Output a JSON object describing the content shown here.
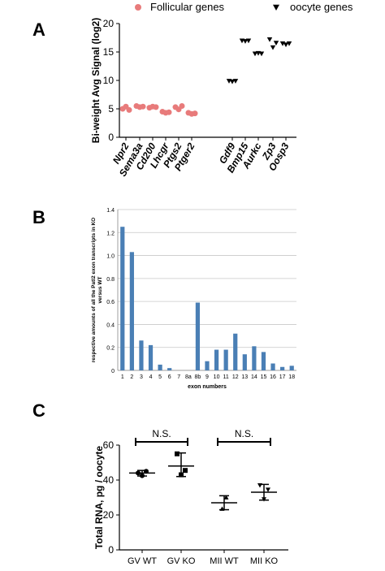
{
  "panel_labels": {
    "a": "A",
    "b": "B",
    "c": "C"
  },
  "colors": {
    "follicular": "#e87b7b",
    "oocyte": "#000000",
    "bars": "#4a7fb5",
    "grid": "#c8c8c8"
  },
  "chart_data": [
    {
      "type": "scatter",
      "legend": [
        "Follicular genes",
        "oocyte genes"
      ],
      "legend_placement": "top",
      "ylabel": "Bi-weight Avg Signal (log2)",
      "xlabel": "",
      "ylim": [
        0,
        20
      ],
      "yticks": [
        0,
        5,
        10,
        15,
        20
      ],
      "grid": false,
      "categories": [
        "Npr2",
        "Sema3a",
        "Cd200",
        "Lhcgr",
        "Ptgs2",
        "Ptger2",
        "Gdf9",
        "Bmp15",
        "Aurkc",
        "Zp3",
        "Oosp3"
      ],
      "series": [
        {
          "name": "Follicular genes",
          "marker": "circle",
          "points": [
            {
              "category": "Npr2",
              "values": [
                5.0,
                5.4,
                4.8
              ]
            },
            {
              "category": "Sema3a",
              "values": [
                5.5,
                5.3,
                5.4
              ]
            },
            {
              "category": "Cd200",
              "values": [
                5.2,
                5.4,
                5.3
              ]
            },
            {
              "category": "Lhcgr",
              "values": [
                4.5,
                4.3,
                4.4
              ]
            },
            {
              "category": "Ptgs2",
              "values": [
                5.3,
                4.9,
                5.5
              ]
            },
            {
              "category": "Ptger2",
              "values": [
                4.3,
                4.1,
                4.2
              ]
            }
          ]
        },
        {
          "name": "oocyte genes",
          "marker": "triangle-down",
          "points": [
            {
              "category": "Gdf9",
              "values": [
                9.9,
                9.8,
                9.9
              ]
            },
            {
              "category": "Bmp15",
              "values": [
                17.0,
                16.9,
                17.0
              ]
            },
            {
              "category": "Aurkc",
              "values": [
                14.7,
                14.8,
                14.7
              ]
            },
            {
              "category": "Zp3",
              "values": [
                17.2,
                15.8,
                16.6
              ]
            },
            {
              "category": "Oosp3",
              "values": [
                16.5,
                16.3,
                16.5
              ]
            }
          ]
        }
      ]
    },
    {
      "type": "bar",
      "ylabel": "respective amounts of all the Patl2 exon transcripts in KO versus WT",
      "xlabel": "exon numbers",
      "ylim": [
        0,
        1.4
      ],
      "yticks": [
        "0",
        "0.2",
        "0.4",
        "0.6",
        "0.8",
        "1.0",
        "1.2",
        "1.4"
      ],
      "grid": true,
      "categories": [
        "1",
        "2",
        "3",
        "4",
        "5",
        "6",
        "7",
        "8a",
        "8b",
        "9",
        "10",
        "11",
        "12",
        "13",
        "14",
        "15",
        "16",
        "17",
        "18"
      ],
      "values": [
        1.25,
        1.03,
        0.26,
        0.22,
        0.05,
        0.02,
        0.0,
        0.0,
        0.59,
        0.08,
        0.18,
        0.18,
        0.32,
        0.14,
        0.21,
        0.16,
        0.06,
        0.03,
        0.04
      ]
    },
    {
      "type": "scatter",
      "ylabel": "Total RNA, pg / oocyte",
      "xlabel": "",
      "ylim": [
        0,
        60
      ],
      "yticks": [
        0,
        20,
        40,
        60
      ],
      "grid": false,
      "categories": [
        "GV WT",
        "GV KO",
        "MII WT",
        "MII KO"
      ],
      "groups": [
        {
          "category": "GV WT",
          "marker": "circle",
          "points": [
            44.0,
            42.5,
            45.0
          ],
          "mean": 44.0,
          "error": [
            42.3,
            45.5
          ]
        },
        {
          "category": "GV KO",
          "marker": "square",
          "points": [
            55.0,
            43.0,
            45.5
          ],
          "mean": 48.0,
          "error": [
            42.0,
            55.5
          ]
        },
        {
          "category": "MII WT",
          "marker": "triangle-up",
          "points": [
            23.5,
            30.0
          ],
          "mean": 27.0,
          "error": [
            23.0,
            31.0
          ]
        },
        {
          "category": "MII KO",
          "marker": "triangle-down",
          "points": [
            37.0,
            29.0,
            34.5
          ],
          "mean": 33.0,
          "error": [
            28.5,
            37.5
          ]
        }
      ],
      "annotations": [
        "N.S.",
        "N.S."
      ]
    }
  ]
}
